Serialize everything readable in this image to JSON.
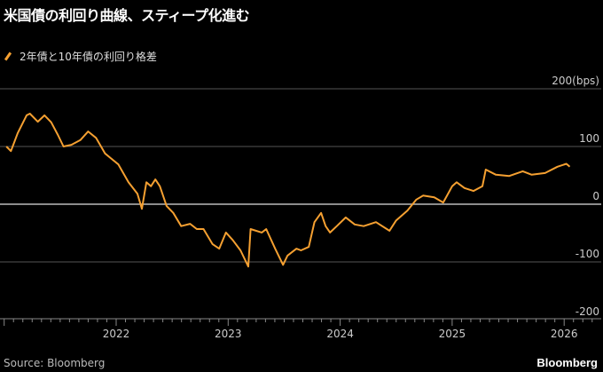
{
  "title": "米国債の利回り曲線、スティープ化進む",
  "source": "Source: Bloomberg",
  "brand": "Bloomberg",
  "colors": {
    "series": "#f5a031",
    "grid": "#555555",
    "zero": "#bbbbbb"
  },
  "chart_data": {
    "type": "line",
    "title": "米国債の利回り曲線、スティープ化進む",
    "ylabel": "bps",
    "ylim": [
      -200,
      200
    ],
    "xlim": [
      2021.0,
      2026.3
    ],
    "legend": "top-left",
    "grid": true,
    "y_ticks": [
      {
        "v": 200,
        "label": "200(bps)"
      },
      {
        "v": 100,
        "label": "100"
      },
      {
        "v": 0,
        "label": "0"
      },
      {
        "v": -100,
        "label": "-100"
      },
      {
        "v": -200,
        "label": "-200"
      }
    ],
    "x_ticks": [
      {
        "v": 2022,
        "label": "2022"
      },
      {
        "v": 2023,
        "label": "2023"
      },
      {
        "v": 2024,
        "label": "2024"
      },
      {
        "v": 2025,
        "label": "2025"
      },
      {
        "v": 2026,
        "label": "2026"
      }
    ],
    "series": [
      {
        "name": "2年債と10年債の利回り格差",
        "x": [
          2021.02,
          2021.06,
          2021.12,
          2021.2,
          2021.23,
          2021.3,
          2021.36,
          2021.42,
          2021.48,
          2021.53,
          2021.6,
          2021.68,
          2021.75,
          2021.82,
          2021.9,
          2021.95,
          2022.02,
          2022.11,
          2022.19,
          2022.23,
          2022.27,
          2022.31,
          2022.35,
          2022.39,
          2022.45,
          2022.51,
          2022.58,
          2022.66,
          2022.72,
          2022.78,
          2022.86,
          2022.92,
          2022.98,
          2023.04,
          2023.11,
          2023.18,
          2023.2,
          2023.3,
          2023.34,
          2023.42,
          2023.49,
          2023.53,
          2023.61,
          2023.65,
          2023.72,
          2023.77,
          2023.83,
          2023.87,
          2023.91,
          2023.97,
          2024.05,
          2024.13,
          2024.21,
          2024.32,
          2024.44,
          2024.5,
          2024.6,
          2024.68,
          2024.74,
          2024.84,
          2024.92,
          2025.0,
          2025.04,
          2025.11,
          2025.19,
          2025.27,
          2025.3,
          2025.39,
          2025.51,
          2025.63,
          2025.71,
          2025.83,
          2025.94,
          2026.02,
          2026.05
        ],
        "values": [
          100,
          92,
          123,
          154,
          157,
          143,
          154,
          142,
          120,
          100,
          103,
          111,
          126,
          115,
          88,
          80,
          69,
          38,
          18,
          -8,
          38,
          31,
          43,
          31,
          -3,
          -15,
          -38,
          -34,
          -43,
          -43,
          -69,
          -77,
          -49,
          -62,
          -80,
          -108,
          -43,
          -49,
          -43,
          -77,
          -105,
          -89,
          -77,
          -80,
          -74,
          -31,
          -15,
          -38,
          -49,
          -38,
          -23,
          -35,
          -38,
          -31,
          -46,
          -28,
          -11,
          8,
          15,
          12,
          3,
          31,
          38,
          28,
          23,
          31,
          60,
          51,
          49,
          57,
          51,
          54,
          65,
          70,
          65
        ]
      }
    ]
  }
}
